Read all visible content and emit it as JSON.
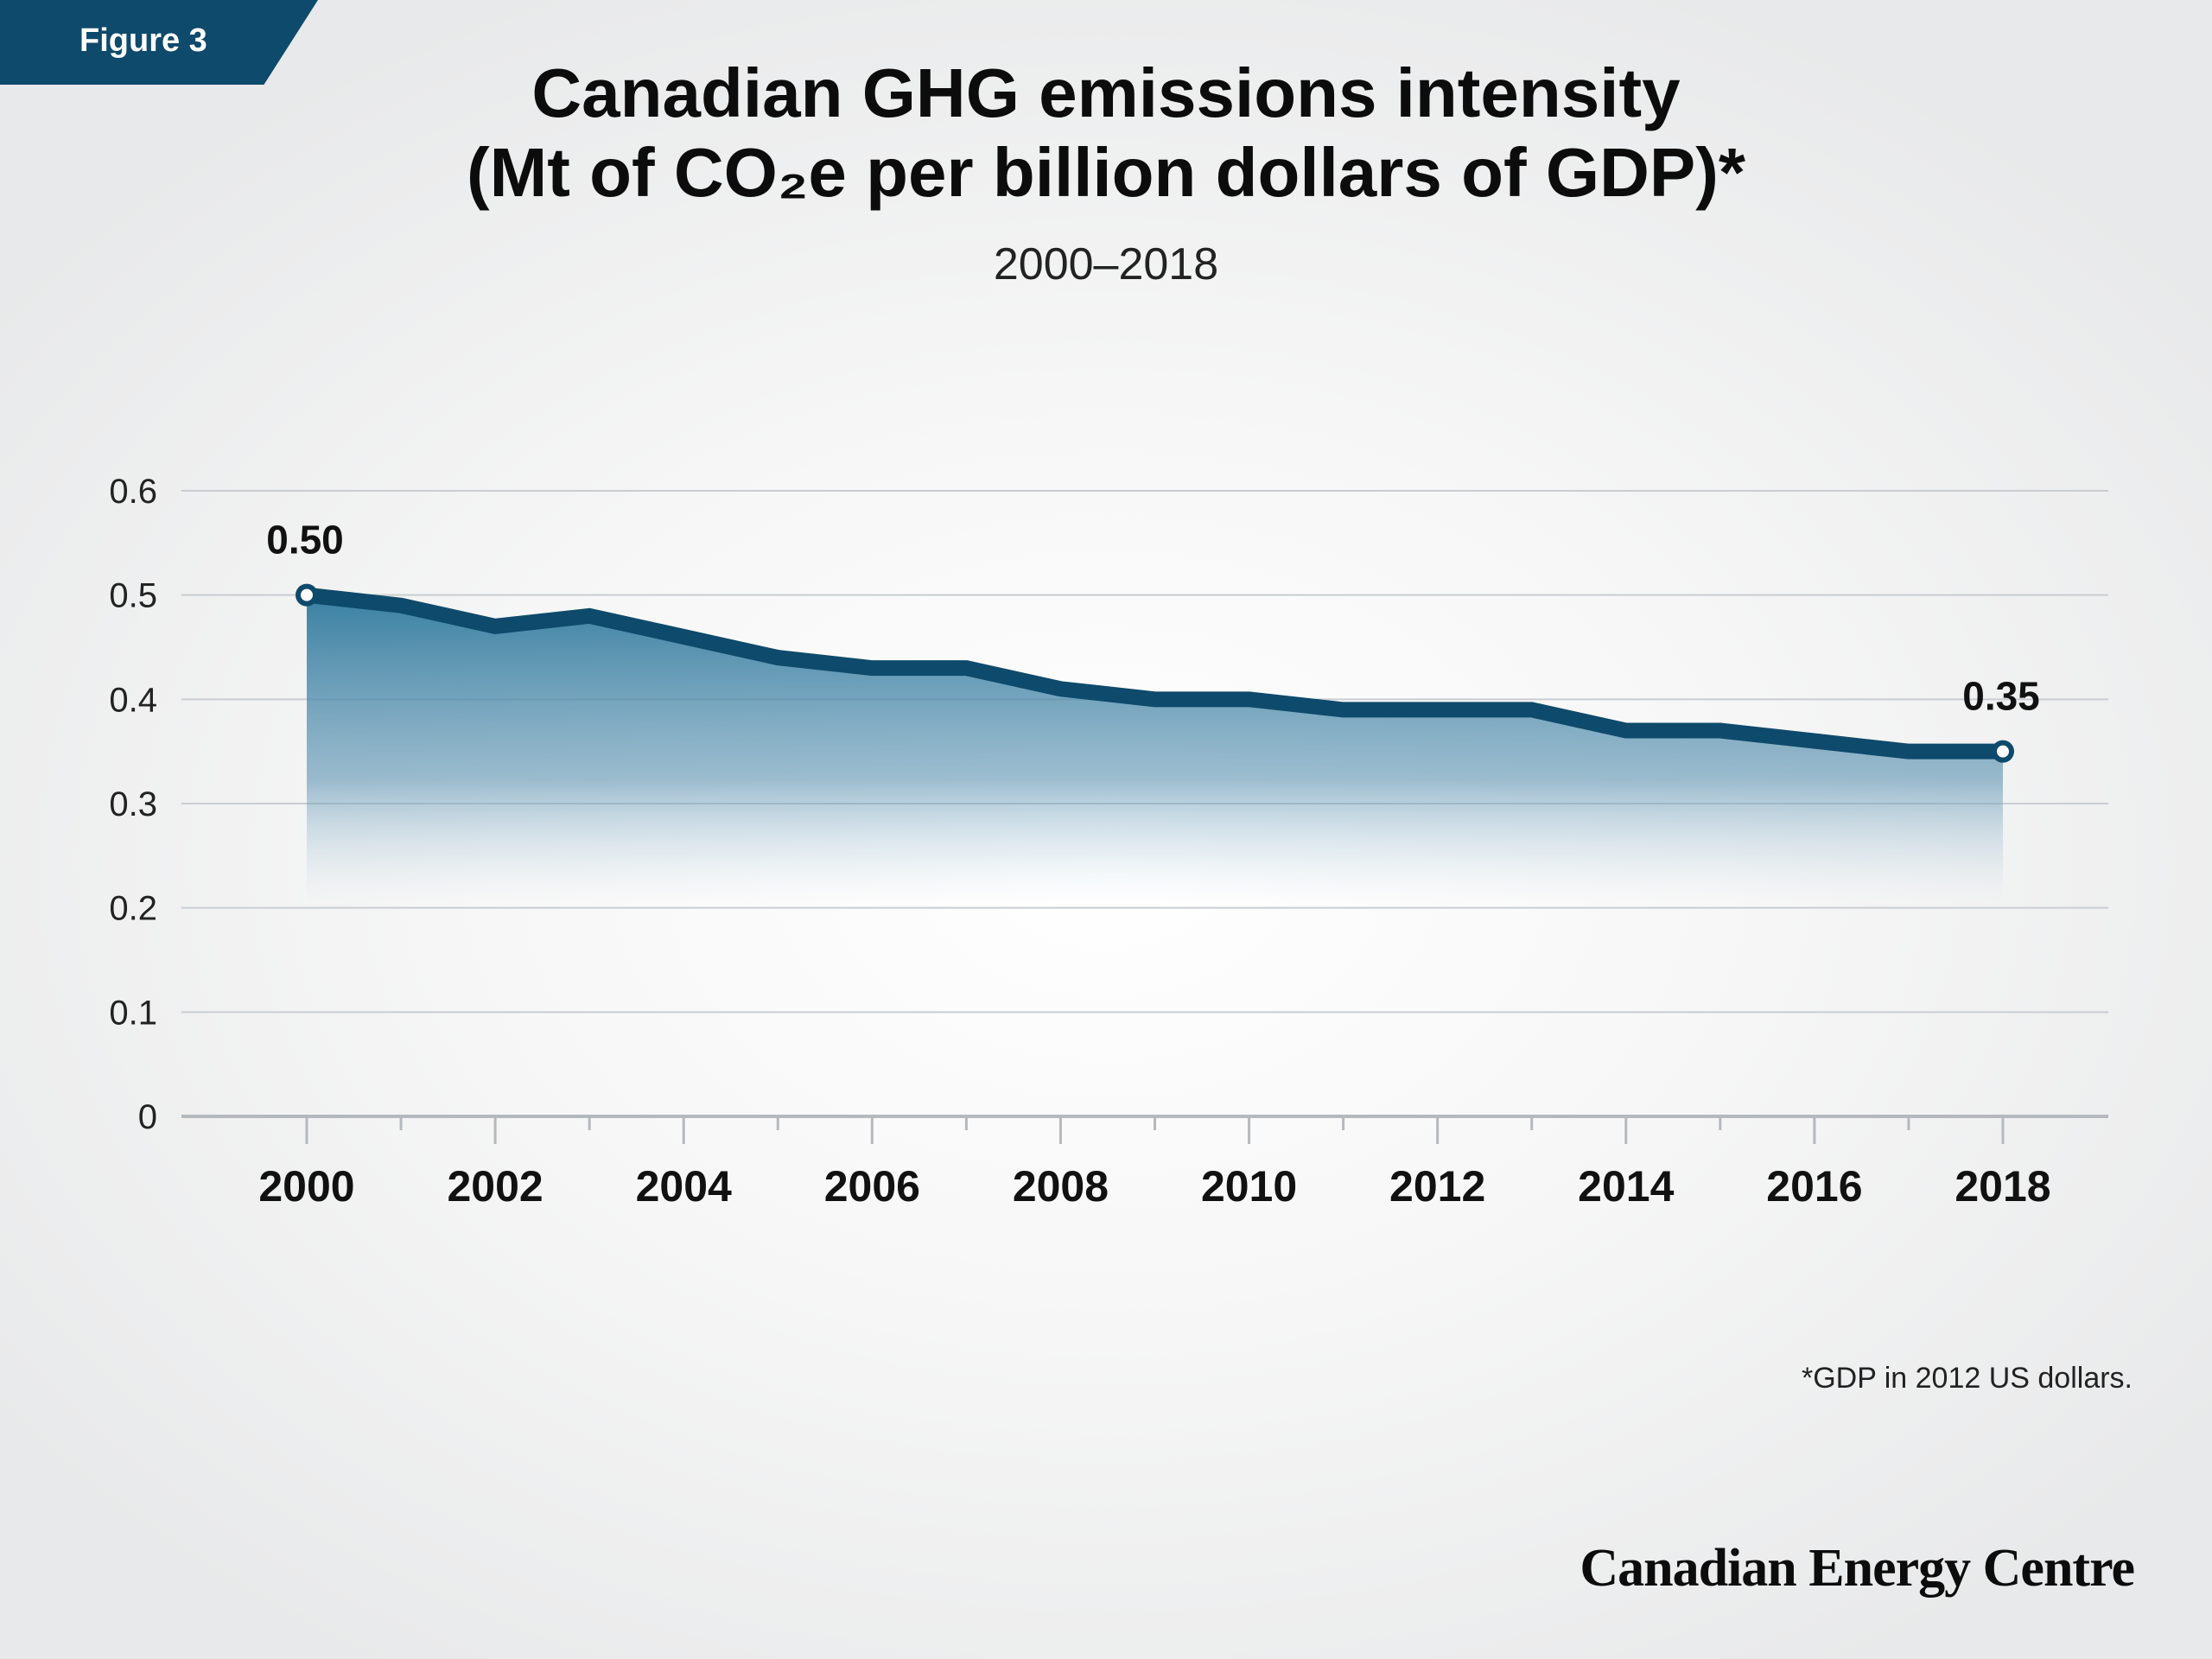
{
  "badge": {
    "label": "Figure 3"
  },
  "header": {
    "title_line1": "Canadian GHG emissions intensity",
    "title_line2": "(Mt of CO₂e per billion dollars of GDP)*",
    "subtitle": "2000–2018"
  },
  "footnote": "*GDP in 2012 US dollars.",
  "brand": "Canadian Energy Centre",
  "colors": {
    "line": "#0e4a6b",
    "area_top": "#2f7a9e",
    "badge": "#0e4a6b",
    "grid": "#c9cdd1"
  },
  "chart_data": {
    "type": "area",
    "title": "Canadian GHG emissions intensity (Mt of CO₂e per billion dollars of GDP)*",
    "subtitle": "2000–2018",
    "xlabel": "",
    "ylabel": "",
    "x": [
      2000,
      2001,
      2002,
      2003,
      2004,
      2005,
      2006,
      2007,
      2008,
      2009,
      2010,
      2011,
      2012,
      2013,
      2014,
      2015,
      2016,
      2017,
      2018
    ],
    "series": [
      {
        "values": [
          0.5,
          0.49,
          0.47,
          0.48,
          0.46,
          0.44,
          0.43,
          0.43,
          0.41,
          0.4,
          0.4,
          0.39,
          0.39,
          0.39,
          0.37,
          0.37,
          0.36,
          0.35,
          0.35
        ]
      }
    ],
    "ylim": [
      0,
      0.6
    ],
    "yticks": [
      0,
      0.1,
      0.2,
      0.3,
      0.4,
      0.5,
      0.6
    ],
    "ytick_labels": [
      "0",
      "0.1",
      "0.2",
      "0.3",
      "0.4",
      "0.5",
      "0.6"
    ],
    "xticks": [
      2000,
      2002,
      2004,
      2006,
      2008,
      2010,
      2012,
      2014,
      2016,
      2018
    ],
    "xtick_labels": [
      "2000",
      "2002",
      "2004",
      "2006",
      "2008",
      "2010",
      "2012",
      "2014",
      "2016",
      "2018"
    ],
    "data_labels": [
      {
        "x": 2000,
        "text": "0.50"
      },
      {
        "x": 2018,
        "text": "0.35"
      }
    ],
    "grid": true,
    "legend": false
  }
}
